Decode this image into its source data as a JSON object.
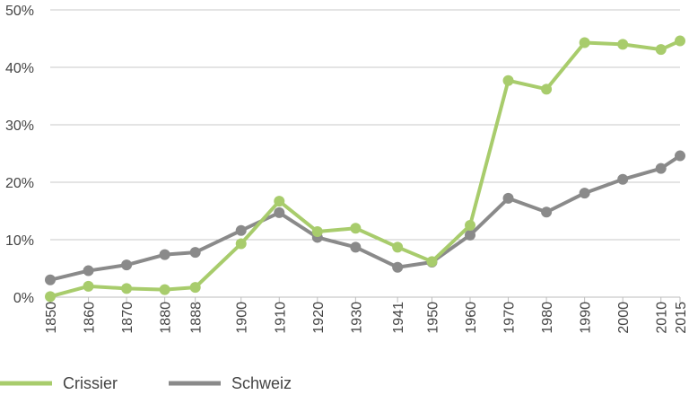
{
  "chart_data": {
    "type": "line",
    "x": [
      "1850",
      "1860",
      "1870",
      "1880",
      "1888",
      "1900",
      "1910",
      "1920",
      "1930",
      "1941",
      "1950",
      "1960",
      "1970",
      "1980",
      "1990",
      "2000",
      "2010",
      "2015"
    ],
    "x_numeric": [
      1850,
      1860,
      1870,
      1880,
      1888,
      1900,
      1910,
      1920,
      1930,
      1941,
      1950,
      1960,
      1970,
      1980,
      1990,
      2000,
      2010,
      2015
    ],
    "series": [
      {
        "name": "Crissier",
        "color": "#a8cc6c",
        "values": [
          0.1,
          1.9,
          1.5,
          1.3,
          1.7,
          9.3,
          16.7,
          11.4,
          12.0,
          8.7,
          6.2,
          12.5,
          37.7,
          36.2,
          44.3,
          44.0,
          43.1,
          44.6
        ]
      },
      {
        "name": "Schweiz",
        "color": "#8a8a8a",
        "values": [
          3.0,
          4.6,
          5.6,
          7.4,
          7.8,
          11.6,
          14.7,
          10.4,
          8.7,
          5.2,
          6.1,
          10.8,
          17.2,
          14.8,
          18.1,
          20.5,
          22.4,
          24.6
        ]
      }
    ],
    "y_ticks": [
      "0%",
      "10%",
      "20%",
      "30%",
      "40%",
      "50%"
    ],
    "ylim": [
      0,
      50
    ],
    "grid": true,
    "legend_placement": "bottom-left"
  }
}
